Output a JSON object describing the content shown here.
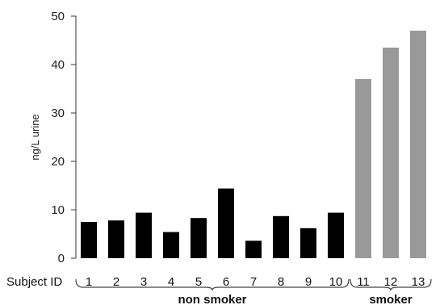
{
  "chart_data": {
    "type": "bar",
    "title": "",
    "xlabel": "Subject ID",
    "ylabel": "ng/L urine",
    "ylim": [
      0,
      50
    ],
    "yticks": [
      0,
      10,
      20,
      30,
      40,
      50
    ],
    "grid": false,
    "categories": [
      "1",
      "2",
      "3",
      "4",
      "5",
      "6",
      "7",
      "8",
      "9",
      "10",
      "11",
      "12",
      "13"
    ],
    "values": [
      7.5,
      7.8,
      9.4,
      5.4,
      8.3,
      14.4,
      3.6,
      8.7,
      6.2,
      9.4,
      37.0,
      43.5,
      47.0
    ],
    "groups": [
      {
        "label": "non smoker",
        "categories": [
          "1",
          "2",
          "3",
          "4",
          "5",
          "6",
          "7",
          "8",
          "9",
          "10"
        ],
        "color": "#000000"
      },
      {
        "label": "smoker",
        "categories": [
          "11",
          "12",
          "13"
        ],
        "color": "#999999"
      }
    ]
  }
}
